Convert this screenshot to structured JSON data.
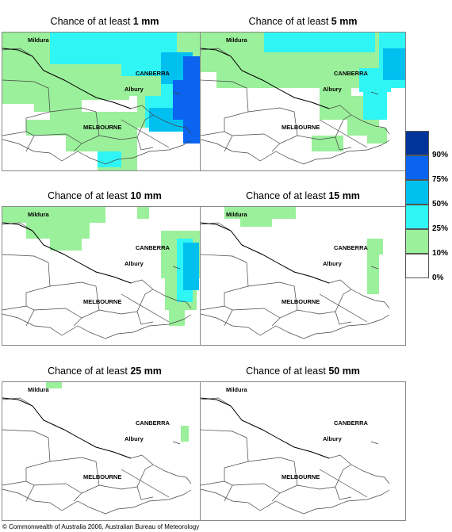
{
  "panels": [
    {
      "prefix": "Chance of at least ",
      "amount": "1 mm"
    },
    {
      "prefix": "Chance of at least ",
      "amount": "5 mm"
    },
    {
      "prefix": "Chance of at least ",
      "amount": "10 mm"
    },
    {
      "prefix": "Chance of at least ",
      "amount": "15 mm"
    },
    {
      "prefix": "Chance of at least ",
      "amount": "25 mm"
    },
    {
      "prefix": "Chance of at least ",
      "amount": "50 mm"
    }
  ],
  "places": {
    "mildura": "Mildura",
    "canberra": "CANBERRA",
    "albury": "Albury",
    "melbourne": "MELBOURNE"
  },
  "legend": [
    {
      "label": "90%",
      "color": "#00349a"
    },
    {
      "label": "75%",
      "color": "#0a64f0"
    },
    {
      "label": "50%",
      "color": "#00c0f0"
    },
    {
      "label": "25%",
      "color": "#30f5f5"
    },
    {
      "label": "10%",
      "color": "#9bf09b"
    },
    {
      "label": "0%",
      "color": "#ffffff"
    }
  ],
  "copyright": "© Commonwealth of Australia 2006, Australian Bureau of Meteorology"
}
